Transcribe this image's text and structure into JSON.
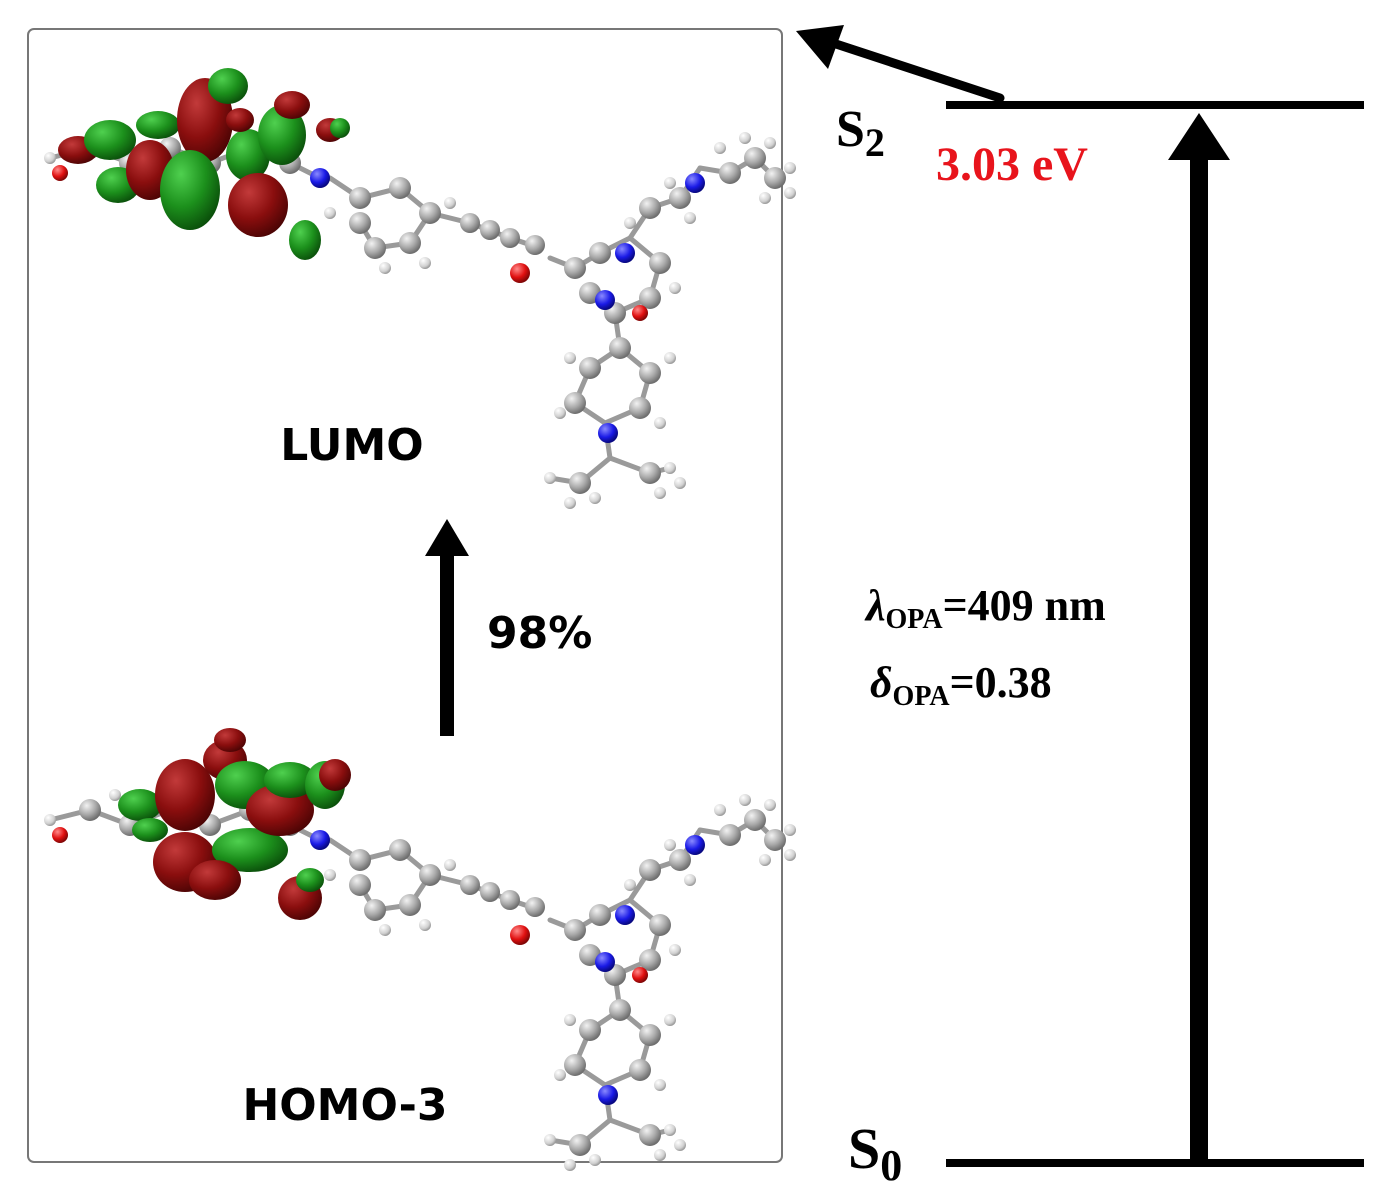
{
  "orbital_panel": {
    "upper_orbital_label": "LUMO",
    "lower_orbital_label": "HOMO-3",
    "transition_contribution": "98%"
  },
  "energy_diagram": {
    "excited_state": {
      "symbol": "S",
      "subscript": "2"
    },
    "ground_state": {
      "symbol": "S",
      "subscript": "0"
    },
    "excitation_energy": "3.03 eV",
    "wavelength": {
      "symbol": "λ",
      "subscript": "OPA",
      "value_text": "=409 nm"
    },
    "oscillator_strength": {
      "symbol": "δ",
      "subscript": "OPA",
      "value_text": "=0.38"
    }
  },
  "colors": {
    "energy_text": "#e8141c",
    "orbital_positive": "#148a14",
    "orbital_negative": "#8a0e0e",
    "atom_carbon": "#a8a8a8",
    "atom_nitrogen": "#1a1ae6",
    "atom_oxygen": "#e01010",
    "atom_hydrogen": "#d8d8d8",
    "line": "#000000",
    "panel_border": "#777777"
  }
}
